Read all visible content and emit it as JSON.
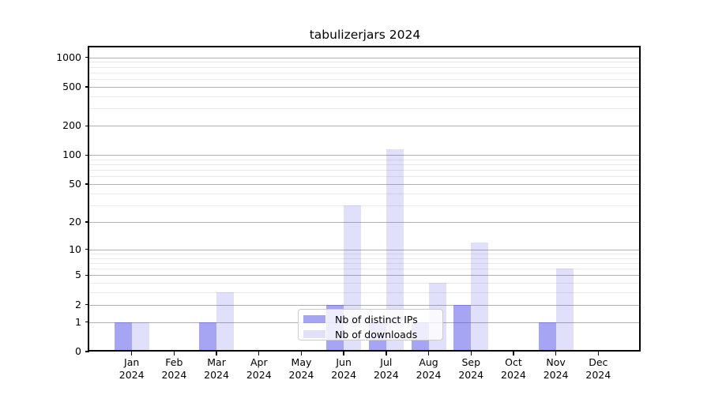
{
  "title": "tabulizerjars 2024",
  "legend": {
    "items": [
      {
        "label": "Nb of distinct IPs",
        "series_key": "distinct_ips"
      },
      {
        "label": "Nb of downloads",
        "series_key": "downloads"
      }
    ]
  },
  "colors": {
    "bar_distinct_ips": "rgba(82,82,234,0.52)",
    "bar_downloads": "rgba(82,82,234,0.18)",
    "grid_major": "#b0b0b0",
    "grid_minor": "#e9e9ec",
    "axis": "#000000",
    "legend_border": "#cccccc",
    "legend_bg": "rgba(255,255,255,0.8)"
  },
  "y_axis": {
    "tick_labels": [
      "0",
      "1",
      "2",
      "5",
      "10",
      "20",
      "50",
      "100",
      "200",
      "500",
      "1000"
    ],
    "tick_values": [
      0,
      1,
      2,
      5,
      10,
      20,
      50,
      100,
      200,
      500,
      1000
    ],
    "minor_values": [
      3,
      4,
      6,
      7,
      8,
      9,
      30,
      40,
      60,
      70,
      80,
      90,
      300,
      400,
      600,
      700,
      800,
      900
    ]
  },
  "x_axis": {
    "months": [
      "Jan",
      "Feb",
      "Mar",
      "Apr",
      "May",
      "Jun",
      "Jul",
      "Aug",
      "Sep",
      "Oct",
      "Nov",
      "Dec"
    ],
    "year": "2024"
  },
  "chart_data": {
    "type": "bar",
    "title": "tabulizerjars 2024",
    "y_scale": "log10(1+x)",
    "categories": [
      "Jan 2024",
      "Feb 2024",
      "Mar 2024",
      "Apr 2024",
      "May 2024",
      "Jun 2024",
      "Jul 2024",
      "Aug 2024",
      "Sep 2024",
      "Oct 2024",
      "Nov 2024",
      "Dec 2024"
    ],
    "series": [
      {
        "name": "Nb of distinct IPs",
        "values": [
          1,
          0,
          1,
          0,
          0,
          2,
          1,
          1,
          2,
          0,
          1,
          0
        ]
      },
      {
        "name": "Nb of downloads",
        "values": [
          1,
          0,
          3,
          0,
          0,
          30,
          114,
          4,
          12,
          0,
          6,
          0
        ]
      }
    ],
    "yticks": [
      0,
      1,
      2,
      5,
      10,
      20,
      50,
      100,
      200,
      500,
      1000
    ],
    "ylim": [
      0,
      1266
    ],
    "grid": true,
    "legend_position": "lower center"
  }
}
